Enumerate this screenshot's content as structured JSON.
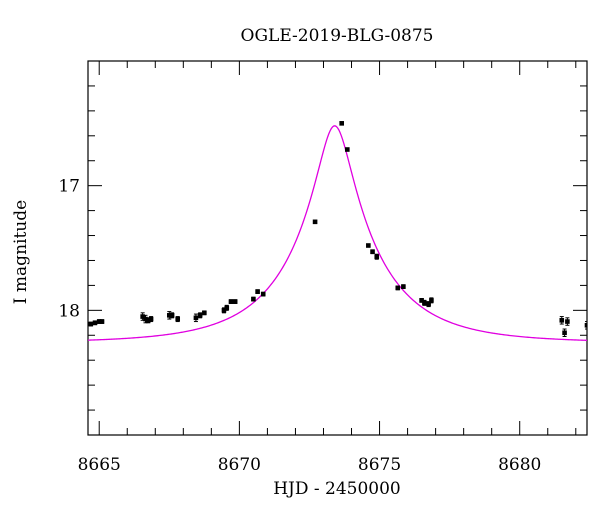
{
  "chart_data": {
    "type": "scatter",
    "title": "OGLE-2019-BLG-0875",
    "xlabel": "HJD - 2450000",
    "ylabel": "I magnitude",
    "xlim": [
      8664.6,
      8682.4
    ],
    "ylim": [
      19.0,
      16.0
    ],
    "y_inverted": true,
    "x_major_ticks": [
      8665,
      8670,
      8675,
      8680
    ],
    "x_tick_labels": [
      "8665",
      "8670",
      "8675",
      "8680"
    ],
    "x_minor_step": 1,
    "y_major_ticks": [
      17,
      18
    ],
    "y_tick_labels": [
      "17",
      "18"
    ],
    "y_minor_step": 0.2,
    "grid": false,
    "legend": "none",
    "colors": {
      "points": "#000000",
      "model": "#e000e0"
    },
    "model": {
      "t0": 8673.4,
      "peak_mag": 16.52,
      "base_mag": 18.26,
      "u0": 0.18,
      "tE": 3.2
    },
    "points": [
      {
        "x": 8664.7,
        "y": 18.11,
        "err": 0.015
      },
      {
        "x": 8664.85,
        "y": 18.1,
        "err": 0.015
      },
      {
        "x": 8665.0,
        "y": 18.09,
        "err": 0.015
      },
      {
        "x": 8665.1,
        "y": 18.09,
        "err": 0.015
      },
      {
        "x": 8666.55,
        "y": 18.05,
        "err": 0.03
      },
      {
        "x": 8666.65,
        "y": 18.07,
        "err": 0.03
      },
      {
        "x": 8666.75,
        "y": 18.08,
        "err": 0.02
      },
      {
        "x": 8666.85,
        "y": 18.07,
        "err": 0.02
      },
      {
        "x": 8667.5,
        "y": 18.04,
        "err": 0.03
      },
      {
        "x": 8667.6,
        "y": 18.04,
        "err": 0.02
      },
      {
        "x": 8667.8,
        "y": 18.07,
        "err": 0.02
      },
      {
        "x": 8668.45,
        "y": 18.06,
        "err": 0.03
      },
      {
        "x": 8668.6,
        "y": 18.04,
        "err": 0.02
      },
      {
        "x": 8668.75,
        "y": 18.02,
        "err": 0.015
      },
      {
        "x": 8669.45,
        "y": 18.0,
        "err": 0.02
      },
      {
        "x": 8669.55,
        "y": 17.98,
        "err": 0.02
      },
      {
        "x": 8669.7,
        "y": 17.93,
        "err": 0.015
      },
      {
        "x": 8669.85,
        "y": 17.93,
        "err": 0.015
      },
      {
        "x": 8670.5,
        "y": 17.91,
        "err": 0.015
      },
      {
        "x": 8670.65,
        "y": 17.85,
        "err": 0.015
      },
      {
        "x": 8670.85,
        "y": 17.87,
        "err": 0.015
      },
      {
        "x": 8672.7,
        "y": 17.29,
        "err": 0.01
      },
      {
        "x": 8673.65,
        "y": 16.5,
        "err": 0.01
      },
      {
        "x": 8673.85,
        "y": 16.71,
        "err": 0.01
      },
      {
        "x": 8674.6,
        "y": 17.48,
        "err": 0.01
      },
      {
        "x": 8674.75,
        "y": 17.53,
        "err": 0.015
      },
      {
        "x": 8674.9,
        "y": 17.57,
        "err": 0.02
      },
      {
        "x": 8675.65,
        "y": 17.82,
        "err": 0.015
      },
      {
        "x": 8675.85,
        "y": 17.81,
        "err": 0.015
      },
      {
        "x": 8676.5,
        "y": 17.92,
        "err": 0.015
      },
      {
        "x": 8676.6,
        "y": 17.94,
        "err": 0.02
      },
      {
        "x": 8676.75,
        "y": 17.95,
        "err": 0.02
      },
      {
        "x": 8676.85,
        "y": 17.92,
        "err": 0.02
      },
      {
        "x": 8681.5,
        "y": 18.08,
        "err": 0.03
      },
      {
        "x": 8681.6,
        "y": 18.18,
        "err": 0.03
      },
      {
        "x": 8681.7,
        "y": 18.09,
        "err": 0.03
      },
      {
        "x": 8682.4,
        "y": 18.12,
        "err": 0.03
      }
    ]
  }
}
